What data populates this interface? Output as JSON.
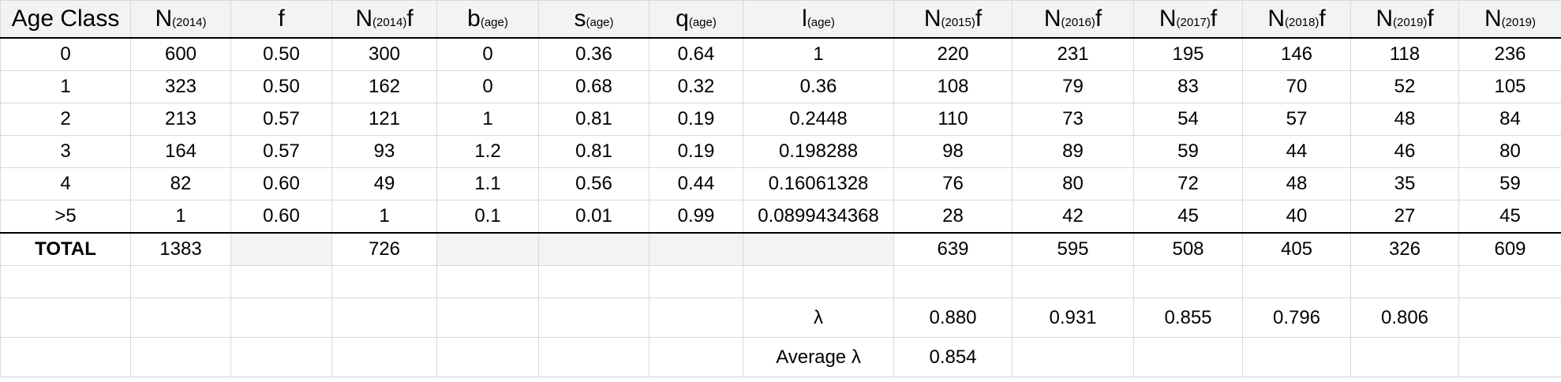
{
  "headers": [
    {
      "main": "Age Class",
      "sub": "",
      "suffix": ""
    },
    {
      "main": "N",
      "sub": "(2014)",
      "suffix": ""
    },
    {
      "main": "f",
      "sub": "",
      "suffix": ""
    },
    {
      "main": "N",
      "sub": "(2014)",
      "suffix": "f"
    },
    {
      "main": "b",
      "sub": "(age)",
      "suffix": ""
    },
    {
      "main": "s",
      "sub": "(age)",
      "suffix": ""
    },
    {
      "main": "q",
      "sub": "(age)",
      "suffix": ""
    },
    {
      "main": "l",
      "sub": "(age)",
      "suffix": ""
    },
    {
      "main": "N",
      "sub": "(2015)",
      "suffix": "f"
    },
    {
      "main": "N",
      "sub": "(2016)",
      "suffix": "f"
    },
    {
      "main": "N",
      "sub": "(2017)",
      "suffix": "f"
    },
    {
      "main": "N",
      "sub": "(2018)",
      "suffix": "f"
    },
    {
      "main": "N",
      "sub": "(2019)",
      "suffix": "f"
    },
    {
      "main": "N",
      "sub": "(2019)",
      "suffix": ""
    }
  ],
  "rows": [
    [
      "0",
      "600",
      "0.50",
      "300",
      "0",
      "0.36",
      "0.64",
      "1",
      "220",
      "231",
      "195",
      "146",
      "118",
      "236"
    ],
    [
      "1",
      "323",
      "0.50",
      "162",
      "0",
      "0.68",
      "0.32",
      "0.36",
      "108",
      "79",
      "83",
      "70",
      "52",
      "105"
    ],
    [
      "2",
      "213",
      "0.57",
      "121",
      "1",
      "0.81",
      "0.19",
      "0.2448",
      "110",
      "73",
      "54",
      "57",
      "48",
      "84"
    ],
    [
      "3",
      "164",
      "0.57",
      "93",
      "1.2",
      "0.81",
      "0.19",
      "0.198288",
      "98",
      "89",
      "59",
      "44",
      "46",
      "80"
    ],
    [
      "4",
      "82",
      "0.60",
      "49",
      "1.1",
      "0.56",
      "0.44",
      "0.16061328",
      "76",
      "80",
      "72",
      "48",
      "35",
      "59"
    ],
    [
      ">5",
      "1",
      "0.60",
      "1",
      "0.1",
      "0.01",
      "0.99",
      "0.0899434368",
      "28",
      "42",
      "45",
      "40",
      "27",
      "45"
    ]
  ],
  "total": [
    "TOTAL",
    "1383",
    "",
    "726",
    "",
    "",
    "",
    "",
    "639",
    "595",
    "508",
    "405",
    "326",
    "609"
  ],
  "lambda_row": {
    "label": "λ",
    "values": [
      "0.880",
      "0.931",
      "0.855",
      "0.796",
      "0.806"
    ]
  },
  "average_row": {
    "label": "Average λ",
    "value": "0.854"
  }
}
